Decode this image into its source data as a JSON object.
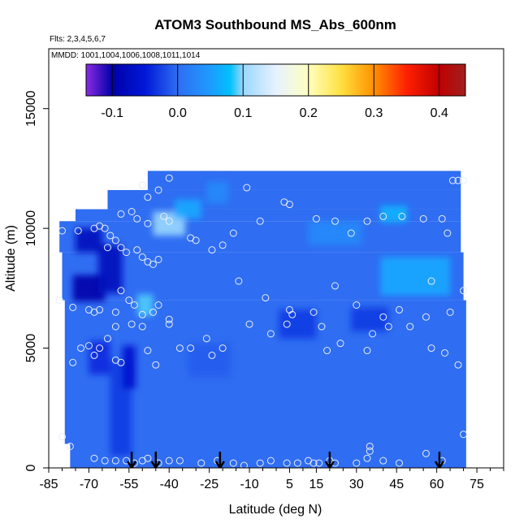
{
  "chart_data": {
    "type": "heatmap",
    "title": "ATOM3 Southbound MS_Abs_600nm",
    "subtitle_flights": "Flts: 2,3,4,5,6,7",
    "subtitle_dates": "MMDD: 1001,1004,1006,1008,1011,1014",
    "xlabel": "Latitude (deg N)",
    "ylabel": "Altitude (m)",
    "xlim": [
      -85,
      85
    ],
    "ylim": [
      0,
      17500
    ],
    "x_ticks": [
      -85,
      -70,
      -55,
      -40,
      -25,
      -10,
      5,
      15,
      30,
      45,
      60,
      75
    ],
    "x_minor_ticks": [
      -80,
      -75,
      -65,
      -60,
      -50,
      -45,
      -35,
      -30,
      -20,
      -15,
      -5,
      0,
      10,
      20,
      25,
      35,
      40,
      50,
      55,
      65,
      70,
      80,
      85
    ],
    "y_ticks": [
      0,
      5000,
      10000,
      15000
    ],
    "colorbar": {
      "range": [
        -0.14,
        0.44
      ],
      "ticks": [
        -0.1,
        0.0,
        0.1,
        0.2,
        0.3,
        0.4
      ],
      "tick_labels": [
        "-0.1",
        "0.0",
        "0.1",
        "0.2",
        "0.3",
        "0.4"
      ],
      "stops": [
        {
          "v": -0.14,
          "c": "#8a2be2"
        },
        {
          "v": -0.1,
          "c": "#0000a8"
        },
        {
          "v": -0.05,
          "c": "#0018d8"
        },
        {
          "v": 0.0,
          "c": "#2f6df2"
        },
        {
          "v": 0.05,
          "c": "#1e9cff"
        },
        {
          "v": 0.08,
          "c": "#00c0ff"
        },
        {
          "v": 0.1,
          "c": "#9ad8ff"
        },
        {
          "v": 0.15,
          "c": "#e6f2ff"
        },
        {
          "v": 0.2,
          "c": "#ffffc0"
        },
        {
          "v": 0.25,
          "c": "#ffe040"
        },
        {
          "v": 0.3,
          "c": "#ff9000"
        },
        {
          "v": 0.35,
          "c": "#ff2000"
        },
        {
          "v": 0.4,
          "c": "#c00000"
        },
        {
          "v": 0.44,
          "c": "#a02020"
        }
      ]
    },
    "background_value": 0.0,
    "coverage": [
      {
        "alt": [
          0,
          1000
        ],
        "lat": [
          -77,
          71
        ]
      },
      {
        "alt": [
          1000,
          7000
        ],
        "lat": [
          -79,
          71
        ]
      },
      {
        "alt": [
          7000,
          9000
        ],
        "lat": [
          -80,
          70
        ]
      },
      {
        "alt": [
          9000,
          10300
        ],
        "lat": [
          -81,
          69
        ]
      },
      {
        "alt": [
          10300,
          10800
        ],
        "lat": [
          -75,
          69
        ]
      },
      {
        "alt": [
          10800,
          11600
        ],
        "lat": [
          -63,
          69
        ]
      },
      {
        "alt": [
          11600,
          12400
        ],
        "lat": [
          -48,
          69
        ]
      }
    ],
    "anomalies": [
      {
        "lat": -70,
        "alt": 7500,
        "w": 12,
        "h": 1100,
        "v": -0.1
      },
      {
        "lat": -70,
        "alt": 9500,
        "w": 10,
        "h": 1000,
        "v": -0.08
      },
      {
        "lat": -62,
        "alt": 8300,
        "w": 9,
        "h": 2000,
        "v": -0.08
      },
      {
        "lat": -66,
        "alt": 4600,
        "w": 8,
        "h": 1400,
        "v": -0.04
      },
      {
        "lat": -58,
        "alt": 2500,
        "w": 8,
        "h": 4000,
        "v": -0.03
      },
      {
        "lat": -55,
        "alt": 4200,
        "w": 5,
        "h": 1800,
        "v": -0.06
      },
      {
        "lat": -49,
        "alt": 6800,
        "w": 6,
        "h": 900,
        "v": 0.09
      },
      {
        "lat": -40,
        "alt": 10200,
        "w": 12,
        "h": 1000,
        "v": 0.1
      },
      {
        "lat": -33,
        "alt": 10800,
        "w": 10,
        "h": 800,
        "v": 0.06
      },
      {
        "lat": -22,
        "alt": 11500,
        "w": 8,
        "h": 900,
        "v": 0.03
      },
      {
        "lat": 8,
        "alt": 6000,
        "w": 14,
        "h": 1200,
        "v": -0.03
      },
      {
        "lat": 22,
        "alt": 9800,
        "w": 20,
        "h": 1000,
        "v": 0.03
      },
      {
        "lat": 52,
        "alt": 8000,
        "w": 26,
        "h": 1600,
        "v": 0.06
      },
      {
        "lat": 44,
        "alt": 10600,
        "w": 10,
        "h": 700,
        "v": 0.07
      },
      {
        "lat": 35,
        "alt": 6200,
        "w": 14,
        "h": 1000,
        "v": -0.03
      },
      {
        "lat": -25,
        "alt": 4500,
        "w": 16,
        "h": 1400,
        "v": -0.01
      }
    ],
    "sample_points": [
      [
        -80,
        9900
      ],
      [
        -74,
        9900
      ],
      [
        -68,
        10000
      ],
      [
        -66,
        10100
      ],
      [
        -64,
        10000
      ],
      [
        -62,
        9700
      ],
      [
        -63,
        9200
      ],
      [
        -60,
        9500
      ],
      [
        -58,
        9200
      ],
      [
        -56,
        9000
      ],
      [
        -52,
        9100
      ],
      [
        -50,
        8800
      ],
      [
        -48,
        8600
      ],
      [
        -46,
        8500
      ],
      [
        -44,
        8700
      ],
      [
        -40,
        10300
      ],
      [
        -42,
        10500
      ],
      [
        -48,
        10200
      ],
      [
        -52,
        10400
      ],
      [
        -54,
        10700
      ],
      [
        -58,
        10600
      ],
      [
        -48,
        11300
      ],
      [
        -44,
        11600
      ],
      [
        -40,
        12100
      ],
      [
        -50,
        11800
      ],
      [
        -32,
        9600
      ],
      [
        -30,
        9500
      ],
      [
        -24,
        9100
      ],
      [
        -20,
        9300
      ],
      [
        -16,
        9800
      ],
      [
        -11,
        11700
      ],
      [
        -6,
        10300
      ],
      [
        3,
        11100
      ],
      [
        5,
        11000
      ],
      [
        15,
        10400
      ],
      [
        22,
        10300
      ],
      [
        28,
        9800
      ],
      [
        34,
        10300
      ],
      [
        40,
        10500
      ],
      [
        47,
        10500
      ],
      [
        55,
        10400
      ],
      [
        62,
        10400
      ],
      [
        68,
        12000
      ],
      [
        70,
        12000
      ],
      [
        66,
        12000
      ],
      [
        64,
        9800
      ],
      [
        58,
        7800
      ],
      [
        70,
        7400
      ],
      [
        -76,
        6700
      ],
      [
        -81,
        7000
      ],
      [
        -70,
        6600
      ],
      [
        -68,
        6500
      ],
      [
        -66,
        6600
      ],
      [
        -60,
        6500
      ],
      [
        -58,
        7400
      ],
      [
        -55,
        7000
      ],
      [
        -53,
        6800
      ],
      [
        -50,
        6400
      ],
      [
        -46,
        6500
      ],
      [
        -44,
        6800
      ],
      [
        -40,
        6000
      ],
      [
        -36,
        5000
      ],
      [
        -32,
        5000
      ],
      [
        -26,
        5400
      ],
      [
        -24,
        4700
      ],
      [
        -20,
        5000
      ],
      [
        -14,
        7800
      ],
      [
        -10,
        6000
      ],
      [
        -4,
        7100
      ],
      [
        -2,
        5600
      ],
      [
        4,
        6000
      ],
      [
        6,
        6400
      ],
      [
        5,
        6600
      ],
      [
        14,
        6500
      ],
      [
        17,
        5900
      ],
      [
        19,
        4900
      ],
      [
        22,
        7600
      ],
      [
        24,
        5200
      ],
      [
        30,
        6800
      ],
      [
        34,
        4900
      ],
      [
        36,
        5600
      ],
      [
        40,
        6300
      ],
      [
        42,
        5900
      ],
      [
        46,
        6600
      ],
      [
        50,
        5900
      ],
      [
        56,
        6300
      ],
      [
        58,
        5000
      ],
      [
        63,
        4800
      ],
      [
        70,
        1400
      ],
      [
        68,
        4300
      ],
      [
        65,
        6500
      ],
      [
        -60,
        5900
      ],
      [
        -63,
        5400
      ],
      [
        -66,
        5000
      ],
      [
        -68,
        4700
      ],
      [
        -60,
        4500
      ],
      [
        -58,
        4400
      ],
      [
        -54,
        6000
      ],
      [
        -50,
        5900
      ],
      [
        -48,
        4900
      ],
      [
        -45,
        4300
      ],
      [
        -40,
        6200
      ],
      [
        -76,
        4400
      ],
      [
        -73,
        5000
      ],
      [
        -70,
        5100
      ],
      [
        -80,
        1300
      ],
      [
        -77,
        900
      ],
      [
        -68,
        400
      ],
      [
        -64,
        300
      ],
      [
        -60,
        300
      ],
      [
        -56,
        300
      ],
      [
        -53,
        200
      ],
      [
        -50,
        300
      ],
      [
        -48,
        400
      ],
      [
        -44,
        200
      ],
      [
        -40,
        300
      ],
      [
        -36,
        300
      ],
      [
        -28,
        200
      ],
      [
        -22,
        300
      ],
      [
        -16,
        200
      ],
      [
        -6,
        200
      ],
      [
        -2,
        300
      ],
      [
        4,
        200
      ],
      [
        8,
        200
      ],
      [
        12,
        300
      ],
      [
        14,
        200
      ],
      [
        16,
        200
      ],
      [
        20,
        300
      ],
      [
        22,
        200
      ],
      [
        30,
        200
      ],
      [
        34,
        400
      ],
      [
        35,
        700
      ],
      [
        35,
        900
      ],
      [
        40,
        300
      ],
      [
        46,
        200
      ],
      [
        56,
        600
      ],
      [
        62,
        300
      ],
      [
        -12,
        100
      ]
    ],
    "arrows_lat": [
      -54,
      -45,
      -21,
      20,
      61
    ]
  }
}
